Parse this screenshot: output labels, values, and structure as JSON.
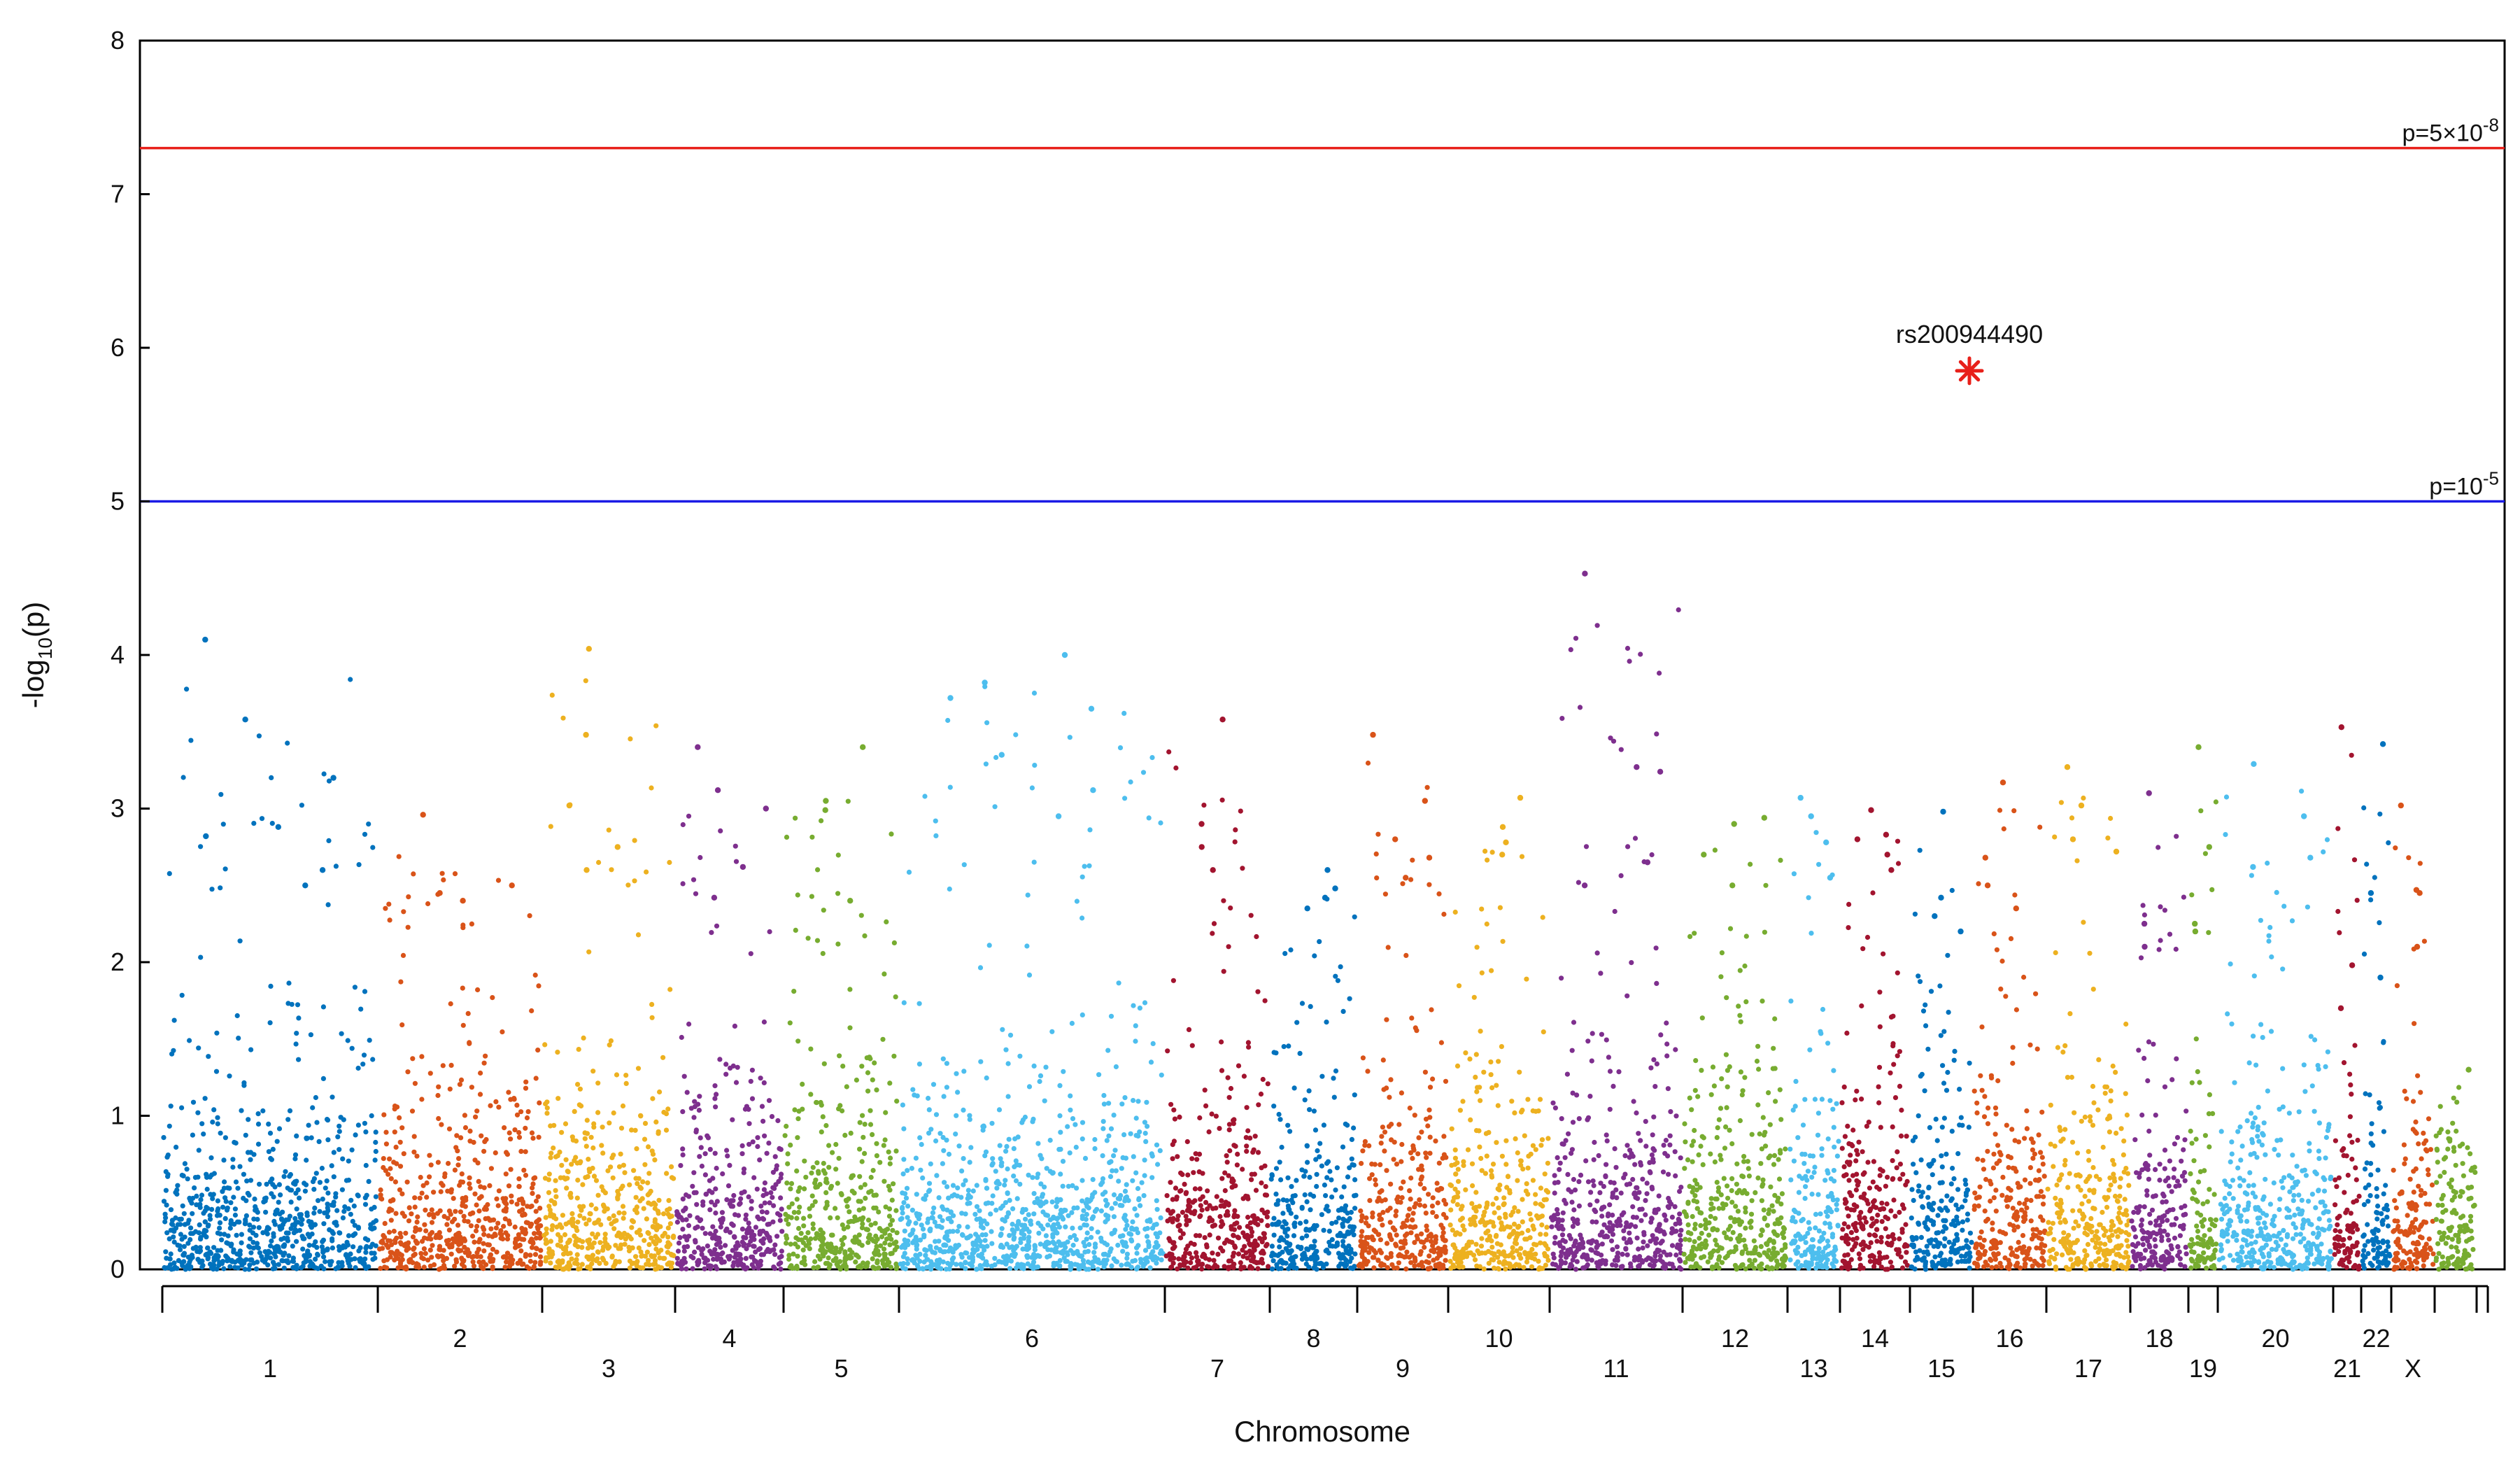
{
  "chart_data": {
    "type": "scatter",
    "title": "",
    "xlabel": "Chromosome",
    "ylabel": "-log",
    "ylabel_sub": "10",
    "ylabel_suffix": "(p)",
    "ylim": [
      0,
      8
    ],
    "yticks": [
      "0",
      "1",
      "2",
      "3",
      "4",
      "5",
      "6",
      "7",
      "8"
    ],
    "chromosomes": [
      {
        "label": "1",
        "bottom": 0.0,
        "top": 4.1,
        "color": "#0072BD",
        "peaks": [
          4.1,
          3.58,
          3.2,
          2.88,
          2.82,
          2.6,
          2.5
        ]
      },
      {
        "label": "2",
        "bottom": 0.0,
        "top": 2.96,
        "color": "#D95319",
        "peaks": [
          2.96,
          2.5,
          2.45,
          2.4
        ]
      },
      {
        "label": "3",
        "bottom": 0.0,
        "top": 4.04,
        "color": "#EDB120",
        "peaks": [
          4.04,
          3.48,
          3.02,
          2.75,
          2.6
        ]
      },
      {
        "label": "4",
        "bottom": 0.0,
        "top": 3.4,
        "color": "#7E2F8E",
        "peaks": [
          3.4,
          3.12,
          3.0,
          2.62,
          2.42
        ]
      },
      {
        "label": "5",
        "bottom": 0.0,
        "top": 3.4,
        "color": "#77AC30",
        "peaks": [
          3.4,
          3.05,
          2.99,
          2.4
        ]
      },
      {
        "label": "6",
        "bottom": 0.0,
        "top": 4.0,
        "color": "#4DBEEE",
        "peaks": [
          4.0,
          3.82,
          3.72,
          3.65,
          3.35,
          3.12,
          2.95
        ]
      },
      {
        "label": "7",
        "bottom": 0.0,
        "top": 3.58,
        "color": "#A2142F",
        "peaks": [
          3.58,
          2.9,
          2.75,
          2.6
        ]
      },
      {
        "label": "8",
        "bottom": 0.0,
        "top": 2.6,
        "color": "#0072BD",
        "peaks": [
          2.6,
          2.48,
          2.42,
          2.35
        ]
      },
      {
        "label": "9",
        "bottom": 0.0,
        "top": 3.48,
        "color": "#D95319",
        "peaks": [
          3.48,
          3.05,
          2.8,
          2.68,
          2.55
        ]
      },
      {
        "label": "10",
        "bottom": 0.0,
        "top": 3.07,
        "color": "#EDB120",
        "peaks": [
          3.07,
          2.88,
          2.78,
          2.7
        ]
      },
      {
        "label": "11",
        "bottom": 0.0,
        "top": 4.53,
        "color": "#7E2F8E",
        "peaks": [
          4.53,
          3.27,
          3.24,
          2.65,
          2.5
        ]
      },
      {
        "label": "12",
        "bottom": 0.0,
        "top": 2.94,
        "color": "#77AC30",
        "peaks": [
          2.94,
          2.9,
          2.7,
          2.5
        ]
      },
      {
        "label": "13",
        "bottom": 0.0,
        "top": 3.07,
        "color": "#4DBEEE",
        "peaks": [
          3.07,
          2.95,
          2.78,
          2.55
        ]
      },
      {
        "label": "14",
        "bottom": 0.0,
        "top": 2.99,
        "color": "#A2142F",
        "peaks": [
          2.99,
          2.83,
          2.8,
          2.7,
          2.6
        ]
      },
      {
        "label": "15",
        "bottom": 0.0,
        "top": 2.98,
        "color": "#0072BD",
        "peaks": [
          2.98,
          2.42,
          2.3,
          2.2
        ]
      },
      {
        "label": "16",
        "bottom": 0.0,
        "top": 3.17,
        "color": "#D95319",
        "peaks": [
          3.17,
          2.68,
          2.5,
          2.35
        ]
      },
      {
        "label": "17",
        "bottom": 0.0,
        "top": 3.27,
        "color": "#EDB120",
        "peaks": [
          3.27,
          3.02,
          2.8,
          2.72
        ]
      },
      {
        "label": "18",
        "bottom": 0.0,
        "top": 3.1,
        "color": "#7E2F8E",
        "peaks": [
          3.1,
          2.25,
          2.1
        ]
      },
      {
        "label": "19",
        "bottom": 0.0,
        "top": 3.4,
        "color": "#77AC30",
        "peaks": [
          3.4,
          2.75,
          2.25,
          2.2
        ]
      },
      {
        "label": "20",
        "bottom": 0.0,
        "top": 3.29,
        "color": "#4DBEEE",
        "peaks": [
          3.29,
          2.95,
          2.68,
          2.62
        ]
      },
      {
        "label": "21",
        "bottom": 0.0,
        "top": 3.53,
        "color": "#A2142F",
        "peaks": [
          3.53,
          1.98,
          1.7
        ]
      },
      {
        "label": "22",
        "bottom": 0.0,
        "top": 3.42,
        "color": "#0072BD",
        "peaks": [
          3.42,
          2.45,
          1.9
        ]
      },
      {
        "label": "X",
        "bottom": 0.0,
        "top": 3.02,
        "color": "#D95319",
        "peaks": [
          3.02,
          2.47,
          2.45,
          2.1
        ]
      },
      {
        "label": "",
        "bottom": 0.0,
        "top": 1.3,
        "color": "#77AC30",
        "peaks": [
          1.3
        ]
      }
    ],
    "thresholds": [
      {
        "name": "genome-wide",
        "label_base": "p=5×10",
        "label_exp": "-8",
        "value": 7.3,
        "color": "#E8201A"
      },
      {
        "name": "suggestive",
        "label_base": "p=10",
        "label_exp": "-5",
        "value": 5.0,
        "color": "#1A1AE6"
      }
    ],
    "highlight": {
      "label": "rs200944490",
      "chromosome": "15",
      "y": 5.85,
      "color": "#E8201A",
      "marker": "asterisk"
    },
    "grid": false,
    "legend": "none"
  }
}
